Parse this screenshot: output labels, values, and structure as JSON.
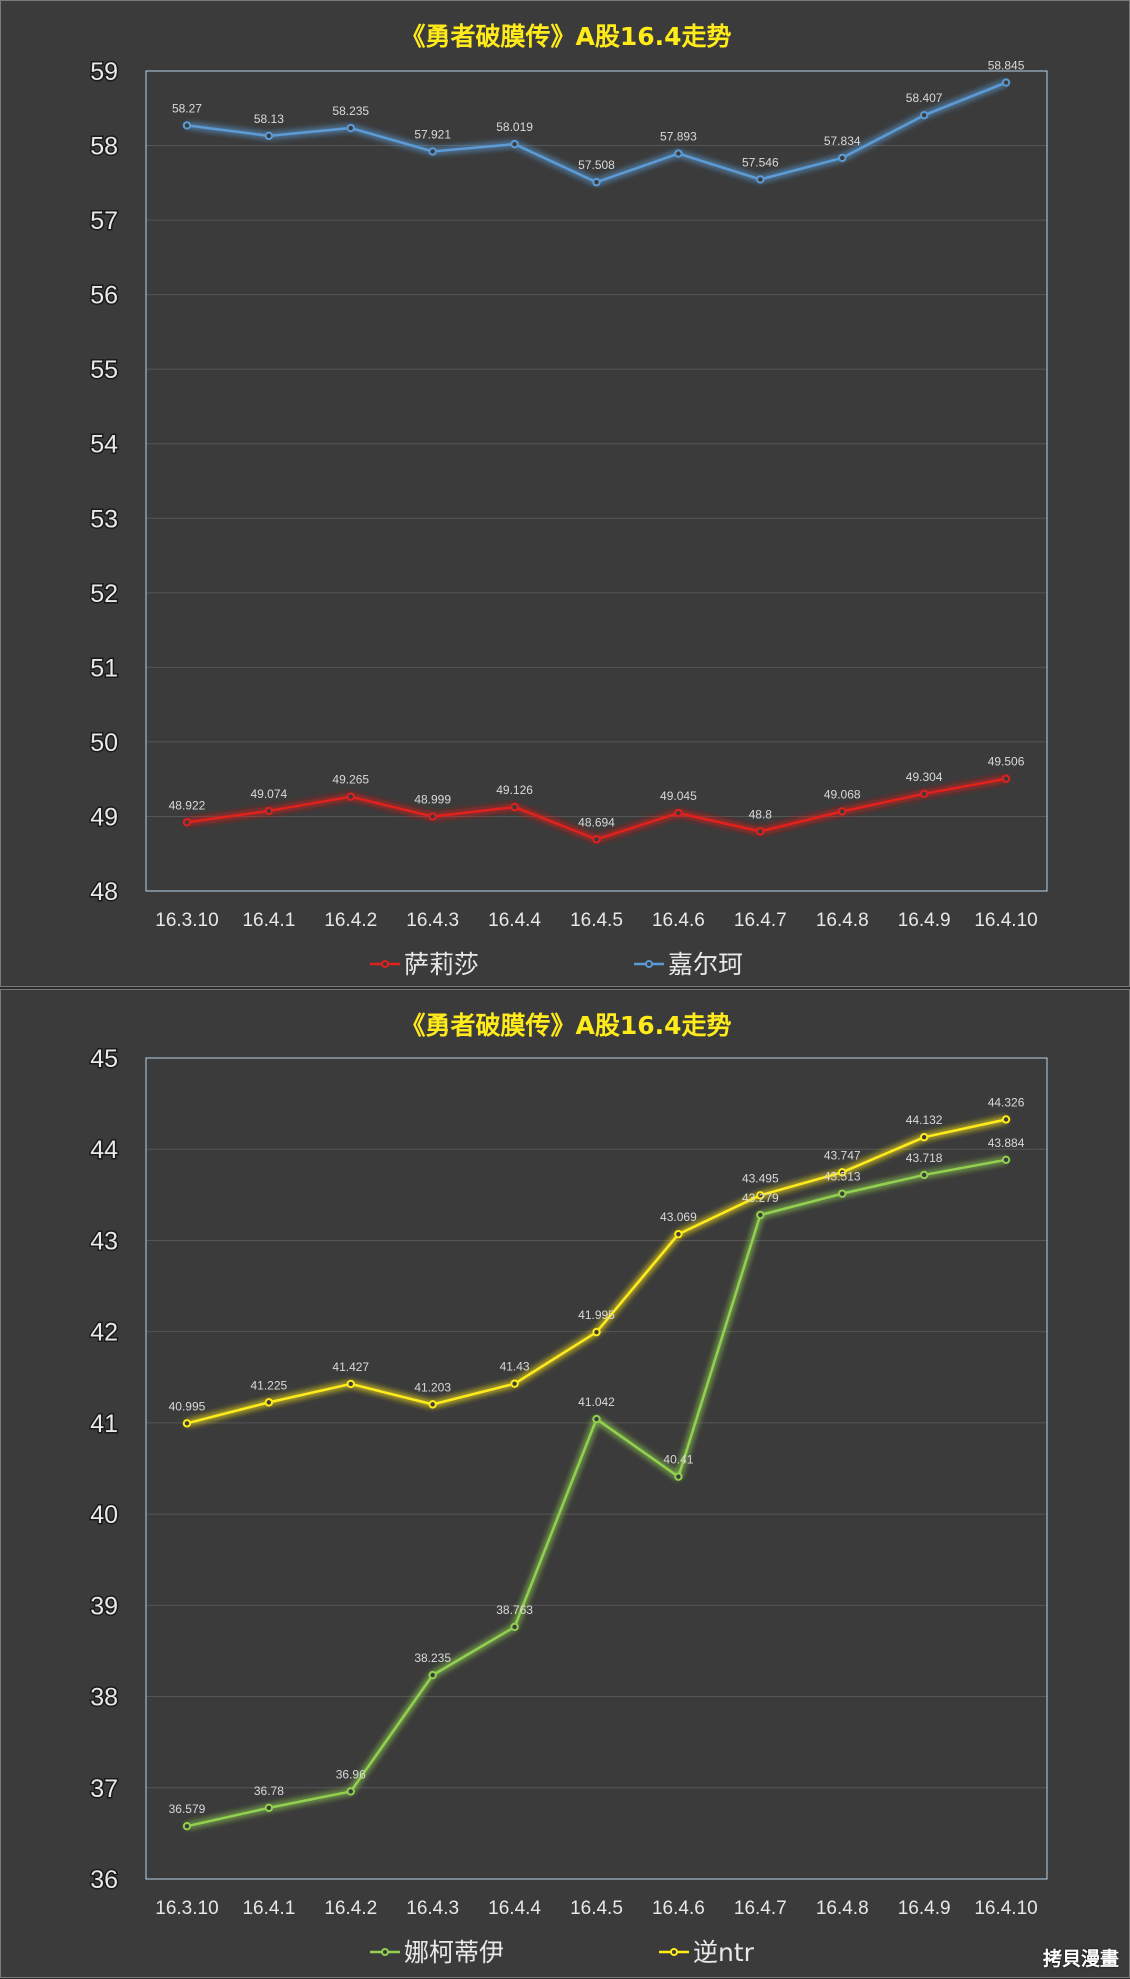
{
  "watermark": "拷貝漫畫",
  "chart_data": [
    {
      "type": "line",
      "title": "《勇者破膜传》A股16.4走势",
      "categories": [
        "16.3.10",
        "16.4.1",
        "16.4.2",
        "16.4.3",
        "16.4.4",
        "16.4.5",
        "16.4.6",
        "16.4.7",
        "16.4.8",
        "16.4.9",
        "16.4.10"
      ],
      "ylim": [
        48,
        59
      ],
      "yticks": [
        48,
        49,
        50,
        51,
        52,
        53,
        54,
        55,
        56,
        57,
        58,
        59
      ],
      "grid": true,
      "legend_position": "bottom",
      "series": [
        {
          "name": "萨莉莎",
          "color": "#e0201e",
          "values": [
            48.922,
            49.074,
            49.265,
            48.999,
            49.126,
            48.694,
            49.045,
            48.8,
            49.068,
            49.304,
            49.506
          ],
          "labels": [
            "48.922",
            "49.074",
            "49.265",
            "48.999",
            "49.126",
            "48.694",
            "49.045",
            "48.8",
            "49.068",
            "49.304",
            "49.506"
          ]
        },
        {
          "name": "嘉尔珂",
          "color": "#5b9bd5",
          "values": [
            58.27,
            58.13,
            58.235,
            57.921,
            58.019,
            57.508,
            57.893,
            57.546,
            57.834,
            58.407,
            58.845
          ],
          "labels": [
            "58.27",
            "58.13",
            "58.235",
            "57.921",
            "58.019",
            "57.508",
            "57.893",
            "57.546",
            "57.834",
            "58.407",
            "58.845"
          ]
        }
      ]
    },
    {
      "type": "line",
      "title": "《勇者破膜传》A股16.4走势",
      "categories": [
        "16.3.10",
        "16.4.1",
        "16.4.2",
        "16.4.3",
        "16.4.4",
        "16.4.5",
        "16.4.6",
        "16.4.7",
        "16.4.8",
        "16.4.9",
        "16.4.10"
      ],
      "ylim": [
        36,
        45
      ],
      "yticks": [
        36,
        37,
        38,
        39,
        40,
        41,
        42,
        43,
        44,
        45
      ],
      "grid": true,
      "legend_position": "bottom",
      "series": [
        {
          "name": "娜柯蒂伊",
          "color": "#92d050",
          "values": [
            36.579,
            36.78,
            36.96,
            38.235,
            38.763,
            41.042,
            40.41,
            43.279,
            43.513,
            43.718,
            43.884
          ],
          "labels": [
            "36.579",
            "36.78",
            "36.96",
            "38.235",
            "38.763",
            "41.042",
            "40.41",
            "43.279",
            "43.513",
            "43.718",
            "43.884"
          ]
        },
        {
          "name": "逆ntr",
          "color": "#ffeb1a",
          "values": [
            40.995,
            41.225,
            41.427,
            41.203,
            41.43,
            41.995,
            43.069,
            43.495,
            43.747,
            44.132,
            44.326
          ],
          "labels": [
            "40.995",
            "41.225",
            "41.427",
            "41.203",
            "41.43",
            "41.995",
            "43.069",
            "43.495",
            "43.747",
            "44.132",
            "44.326"
          ]
        }
      ]
    }
  ]
}
